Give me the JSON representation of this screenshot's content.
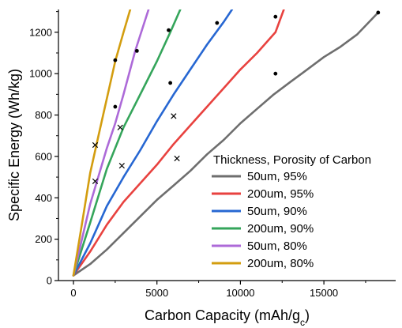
{
  "chart_data": {
    "type": "line",
    "title": "",
    "xlabel_main": "Carbon Capacity (mAh/g",
    "xlabel_sub": "c",
    "xlabel_end": ")",
    "ylabel": "Specific Energy (Wh/kg)",
    "xlim": [
      -900,
      19300
    ],
    "ylim": [
      0,
      1310
    ],
    "xticks": [
      0,
      5000,
      10000,
      15000
    ],
    "yticks": [
      0,
      200,
      400,
      600,
      800,
      1000,
      1200
    ],
    "legend_title": "Thickness, Porosity of Carbon",
    "legend_position": "lower-right",
    "series": [
      {
        "name": "50um, 95%",
        "color": "#6e6e6e",
        "points": [
          [
            0,
            25
          ],
          [
            1000,
            80
          ],
          [
            2000,
            150
          ],
          [
            3000,
            230
          ],
          [
            4000,
            310
          ],
          [
            5000,
            390
          ],
          [
            6000,
            460
          ],
          [
            7000,
            530
          ],
          [
            8000,
            610
          ],
          [
            9000,
            680
          ],
          [
            10000,
            760
          ],
          [
            11000,
            830
          ],
          [
            12000,
            900
          ],
          [
            13000,
            960
          ],
          [
            14000,
            1020
          ],
          [
            15000,
            1080
          ],
          [
            16000,
            1130
          ],
          [
            17000,
            1190
          ],
          [
            18250,
            1295
          ]
        ],
        "dots": [
          [
            12100,
            1000
          ],
          [
            18250,
            1295
          ]
        ],
        "crosses": [
          [
            6200,
            590
          ]
        ]
      },
      {
        "name": "200um, 95%",
        "color": "#e8423f",
        "points": [
          [
            0,
            25
          ],
          [
            1000,
            140
          ],
          [
            2000,
            270
          ],
          [
            3000,
            380
          ],
          [
            4000,
            470
          ],
          [
            5000,
            560
          ],
          [
            6000,
            660
          ],
          [
            7000,
            750
          ],
          [
            8000,
            840
          ],
          [
            9000,
            930
          ],
          [
            10000,
            1020
          ],
          [
            11000,
            1100
          ],
          [
            12100,
            1200
          ],
          [
            12600,
            1310
          ]
        ],
        "dots": [
          [
            12100,
            1275
          ]
        ],
        "crosses": [
          [
            6000,
            795
          ]
        ]
      },
      {
        "name": "50um, 90%",
        "color": "#2767d2",
        "points": [
          [
            0,
            25
          ],
          [
            1000,
            180
          ],
          [
            2000,
            360
          ],
          [
            3000,
            500
          ],
          [
            4000,
            630
          ],
          [
            5000,
            770
          ],
          [
            6000,
            900
          ],
          [
            7000,
            1020
          ],
          [
            8000,
            1140
          ],
          [
            9000,
            1250
          ],
          [
            9500,
            1310
          ]
        ],
        "dots": [
          [
            5800,
            955
          ],
          [
            8600,
            1245
          ]
        ],
        "crosses": [
          [
            2900,
            555
          ]
        ]
      },
      {
        "name": "200um, 90%",
        "color": "#35a55b",
        "points": [
          [
            0,
            25
          ],
          [
            1000,
            280
          ],
          [
            2000,
            540
          ],
          [
            3000,
            740
          ],
          [
            4000,
            900
          ],
          [
            5000,
            1060
          ],
          [
            5800,
            1200
          ],
          [
            6400,
            1310
          ]
        ],
        "dots": [
          [
            5700,
            1210
          ]
        ],
        "crosses": [
          [
            2800,
            740
          ]
        ]
      },
      {
        "name": "50um, 80%",
        "color": "#ad6ad8",
        "points": [
          [
            0,
            25
          ],
          [
            1000,
            370
          ],
          [
            2000,
            640
          ],
          [
            2500,
            760
          ],
          [
            3000,
            900
          ],
          [
            3700,
            1110
          ],
          [
            4500,
            1310
          ]
        ],
        "dots": [
          [
            2500,
            840
          ],
          [
            3800,
            1110
          ]
        ],
        "crosses": [
          [
            1300,
            480
          ]
        ]
      },
      {
        "name": "200um, 80%",
        "color": "#d39d0f",
        "points": [
          [
            0,
            25
          ],
          [
            500,
            270
          ],
          [
            1000,
            520
          ],
          [
            1500,
            700
          ],
          [
            2000,
            880
          ],
          [
            2500,
            1060
          ],
          [
            3000,
            1200
          ],
          [
            3400,
            1310
          ]
        ],
        "dots": [
          [
            2500,
            1065
          ]
        ],
        "crosses": [
          [
            1300,
            655
          ]
        ]
      }
    ]
  }
}
